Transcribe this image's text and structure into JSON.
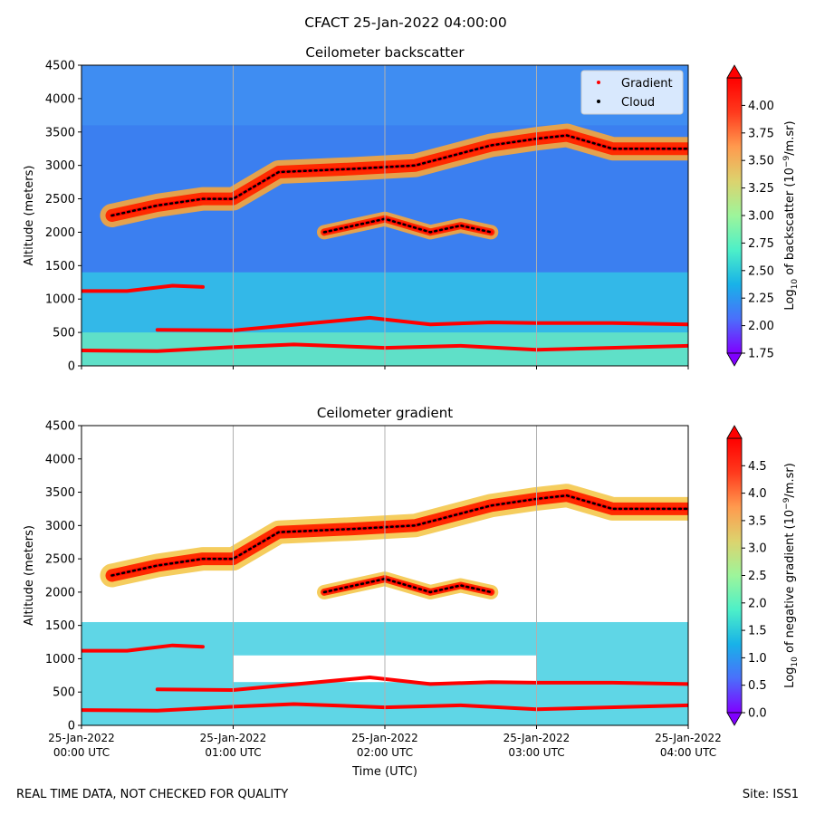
{
  "figure": {
    "suptitle": "CFACT 25-Jan-2022 04:00:00",
    "footer_left": "REAL TIME DATA, NOT CHECKED FOR QUALITY",
    "footer_right": "Site: ISS1"
  },
  "colors": {
    "gradient_marker": "#ff0000",
    "cloud_marker": "#000000",
    "grid": "#b0b0b0"
  },
  "chart_data": [
    {
      "type": "heatmap",
      "title": "Ceilometer backscatter",
      "xlabel": "",
      "ylabel": "Altitude (meters)",
      "xlim_hours_utc": [
        0,
        4
      ],
      "ylim": [
        0,
        4500
      ],
      "yticks": [
        0,
        500,
        1000,
        1500,
        2000,
        2500,
        3000,
        3500,
        4000,
        4500
      ],
      "colorbar": {
        "label_parts": [
          "Log",
          "10",
          " of backscatter (10",
          "−9",
          "/m.sr)"
        ],
        "range": [
          1.75,
          4.25
        ],
        "ticks": [
          "1.75",
          "2.00",
          "2.25",
          "2.50",
          "2.75",
          "3.00",
          "3.25",
          "3.50",
          "3.75",
          "4.00"
        ],
        "colormap": "rainbow"
      },
      "legend": {
        "placement": "top-right",
        "entries": [
          "Gradient",
          "Cloud"
        ]
      },
      "layers": [
        {
          "name": "cloud layer upper",
          "hours": [
            0.2,
            0.5,
            0.8,
            1.0,
            1.3,
            1.8,
            2.2,
            2.7,
            3.0,
            3.2,
            3.5,
            4.0
          ],
          "altitude": [
            2250,
            2400,
            2500,
            2500,
            2900,
            2950,
            3000,
            3300,
            3400,
            3450,
            3250,
            3250
          ]
        },
        {
          "name": "cloud layer middle",
          "hours": [
            1.6,
            2.0,
            2.3,
            2.5,
            2.7
          ],
          "altitude": [
            2000,
            2200,
            2000,
            2100,
            2000
          ]
        },
        {
          "name": "boundary layer 1100m",
          "hours": [
            0.0,
            0.3,
            0.6,
            0.8
          ],
          "altitude": [
            1120,
            1120,
            1200,
            1180
          ]
        },
        {
          "name": "layer 550m",
          "hours": [
            0.5,
            1.0,
            1.9,
            2.3,
            2.7,
            3.0,
            3.5,
            4.0
          ],
          "altitude": [
            540,
            530,
            720,
            620,
            650,
            640,
            640,
            620
          ]
        },
        {
          "name": "surface layer 250m",
          "hours": [
            0.0,
            0.5,
            1.0,
            1.4,
            2.0,
            2.5,
            3.0,
            4.0
          ],
          "altitude": [
            230,
            220,
            280,
            320,
            270,
            300,
            240,
            300
          ]
        }
      ]
    },
    {
      "type": "heatmap",
      "title": "Ceilometer gradient",
      "xlabel": "Time (UTC)",
      "ylabel": "Altitude (meters)",
      "xlim_hours_utc": [
        0,
        4
      ],
      "ylim": [
        0,
        4500
      ],
      "yticks": [
        0,
        500,
        1000,
        1500,
        2000,
        2500,
        3000,
        3500,
        4000,
        4500
      ],
      "xticks": [
        {
          "hour": 0,
          "line1": "25-Jan-2022",
          "line2": "00:00 UTC"
        },
        {
          "hour": 1,
          "line1": "25-Jan-2022",
          "line2": "01:00 UTC"
        },
        {
          "hour": 2,
          "line1": "25-Jan-2022",
          "line2": "02:00 UTC"
        },
        {
          "hour": 3,
          "line1": "25-Jan-2022",
          "line2": "03:00 UTC"
        },
        {
          "hour": 4,
          "line1": "25-Jan-2022",
          "line2": "04:00 UTC"
        }
      ],
      "colorbar": {
        "label_parts": [
          "Log",
          "10",
          " of negative gradient (10",
          "−9",
          "/m.sr)"
        ],
        "range": [
          0.0,
          5.0
        ],
        "ticks": [
          "0.0",
          "0.5",
          "1.0",
          "1.5",
          "2.0",
          "2.5",
          "3.0",
          "3.5",
          "4.0",
          "4.5"
        ],
        "colormap": "rainbow"
      }
    }
  ]
}
